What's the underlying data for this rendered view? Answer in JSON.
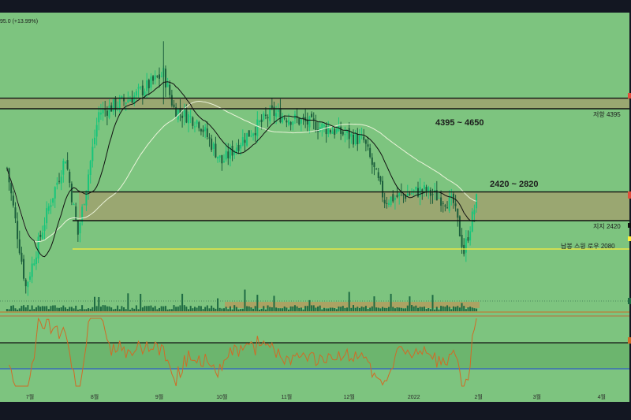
{
  "colors": {
    "background": "#7dc47f",
    "frame": "#131722",
    "zone_fill": "#9aa771",
    "line_black": "#111111",
    "yellow": "#ffee3a",
    "up_candle": "#17c57a",
    "down_candle": "#1b5e3c",
    "ma_short": "#111111",
    "ma_long": "#eaf3d9",
    "rsi_line": "#d06b26",
    "rsi_band": "#6ab46d",
    "rsi_low": "#2f5ec5",
    "rsi_top": "#c06a3a",
    "volume_bar": "#1e6b43",
    "volume_profile": "#b79b5c"
  },
  "header": {
    "ticker_info": "95.0 (+13.99%)"
  },
  "annotations": {
    "resistance_range": "4395 ~ 4650",
    "support_range": "2420 ~ 2820",
    "resistance_label": "저항 4395",
    "support_label": "지지 2420",
    "swing_low_label": "납봉 스윙 로우 2080"
  },
  "chart_data": {
    "type": "candlestick",
    "title": "",
    "x_labels": [
      "7월",
      "8월",
      "9월",
      "10월",
      "11월",
      "12월",
      "2022",
      "2월",
      "3월",
      "4월"
    ],
    "price_levels": {
      "resistance_zone": [
        4395,
        4650
      ],
      "support_zone": [
        2420,
        2820
      ],
      "swing_low": 2080
    },
    "price_path": [
      {
        "t": "2021-06-20",
        "close": 3200
      },
      {
        "t": "2021-06-29",
        "close": 1700
      },
      {
        "t": "2021-07-10",
        "close": 2600
      },
      {
        "t": "2021-07-18",
        "close": 3400
      },
      {
        "t": "2021-07-24",
        "close": 2250
      },
      {
        "t": "2021-08-03",
        "close": 4300
      },
      {
        "t": "2021-08-20",
        "close": 4700
      },
      {
        "t": "2021-09-03",
        "close": 5300
      },
      {
        "t": "2021-09-08",
        "close": 4400
      },
      {
        "t": "2021-09-20",
        "close": 4100
      },
      {
        "t": "2021-10-01",
        "close": 3300
      },
      {
        "t": "2021-10-10",
        "close": 3700
      },
      {
        "t": "2021-10-25",
        "close": 4300
      },
      {
        "t": "2021-11-05",
        "close": 4150
      },
      {
        "t": "2021-11-25",
        "close": 3900
      },
      {
        "t": "2021-12-08",
        "close": 3700
      },
      {
        "t": "2021-12-18",
        "close": 2700
      },
      {
        "t": "2022-01-05",
        "close": 2850
      },
      {
        "t": "2022-01-20",
        "close": 2650
      },
      {
        "t": "2022-01-25",
        "close": 2050
      },
      {
        "t": "2022-01-31",
        "close": 2700
      }
    ],
    "indicators": [
      "volume",
      "rsi"
    ]
  }
}
